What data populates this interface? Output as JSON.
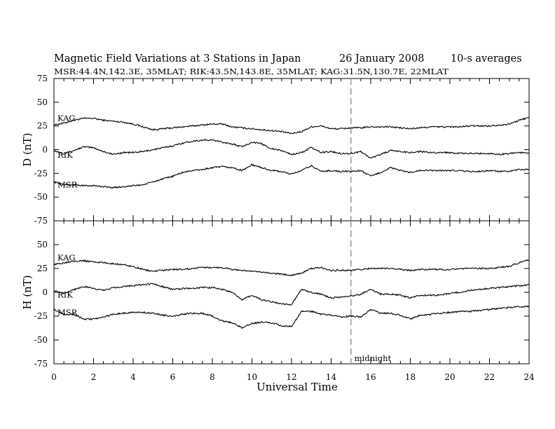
{
  "header": {
    "title": "Magnetic Field Variations at 3 Stations in Japan",
    "date": "26 January 2008",
    "cadence": "10-s averages",
    "subtitle": "MSR:44.4N,142.3E, 35MLAT;  RIK:43.5N,143.8E, 35MLAT;  KAG:31.5N,130.7E, 22MLAT"
  },
  "x_axis": {
    "label": "Universal Time",
    "range": [
      0,
      24
    ],
    "ticks": [
      "0",
      "2",
      "4",
      "6",
      "8",
      "10",
      "12",
      "14",
      "16",
      "18",
      "20",
      "22",
      "24"
    ]
  },
  "marker": {
    "label": "midnight",
    "x": 15,
    "color": "#999999"
  },
  "chart_data": [
    {
      "type": "line",
      "panel": "D",
      "ylabel": "D (nT)",
      "ylim": [
        -75,
        75
      ],
      "yticks": [
        "75",
        "50",
        "25",
        "0",
        "-25",
        "-50",
        "-75"
      ],
      "xlim": [
        0,
        24
      ],
      "grid": false,
      "series": [
        {
          "name": "KAG",
          "x": [
            0,
            0.5,
            1,
            1.5,
            2,
            2.5,
            3,
            3.5,
            4,
            4.5,
            5,
            5.5,
            6,
            6.5,
            7,
            7.5,
            8,
            8.5,
            9,
            9.5,
            10,
            10.5,
            11,
            11.5,
            12,
            12.5,
            13,
            13.5,
            14,
            14.5,
            15,
            15.5,
            16,
            16.5,
            17,
            17.5,
            18,
            18.5,
            19,
            19.5,
            20,
            20.5,
            21,
            21.5,
            22,
            22.5,
            23,
            23.5,
            24
          ],
          "y": [
            26,
            28,
            31,
            33,
            33,
            31,
            30,
            29,
            27,
            24,
            21,
            22,
            23,
            24,
            25,
            26,
            27,
            27,
            24,
            23,
            22,
            21,
            20,
            19,
            17,
            19,
            24,
            25,
            22,
            22,
            23,
            23,
            24,
            24,
            24,
            23,
            22,
            23,
            24,
            24,
            24,
            24,
            25,
            25,
            25,
            26,
            27,
            31,
            34
          ]
        },
        {
          "name": "RIK",
          "x": [
            0,
            0.5,
            1,
            1.5,
            2,
            2.5,
            3,
            3.5,
            4,
            4.5,
            5,
            5.5,
            6,
            6.5,
            7,
            7.5,
            8,
            8.5,
            9,
            9.5,
            10,
            10.5,
            11,
            11.5,
            12,
            12.5,
            13,
            13.5,
            14,
            14.5,
            15,
            15.5,
            16,
            16.5,
            17,
            17.5,
            18,
            18.5,
            19,
            19.5,
            20,
            20.5,
            21,
            21.5,
            22,
            22.5,
            23,
            23.5,
            24
          ],
          "y": [
            -1,
            -4,
            -1,
            3,
            2,
            -2,
            -5,
            -3,
            -3,
            -2,
            0,
            2,
            4,
            7,
            9,
            10,
            10,
            8,
            6,
            3,
            8,
            6,
            1,
            -1,
            -5,
            -3,
            2,
            -3,
            -2,
            -4,
            -4,
            -2,
            -9,
            -5,
            -1,
            -2,
            -3,
            -2,
            -3,
            -3,
            -3,
            -4,
            -4,
            -4,
            -4,
            -5,
            -4,
            -3,
            -3
          ]
        },
        {
          "name": "MSR",
          "x": [
            0,
            0.5,
            1,
            1.5,
            2,
            2.5,
            3,
            3.5,
            4,
            4.5,
            5,
            5.5,
            6,
            6.5,
            7,
            7.5,
            8,
            8.5,
            9,
            9.5,
            10,
            10.5,
            11,
            11.5,
            12,
            12.5,
            13,
            13.5,
            14,
            14.5,
            15,
            15.5,
            16,
            16.5,
            17,
            17.5,
            18,
            18.5,
            19,
            19.5,
            20,
            20.5,
            21,
            21.5,
            22,
            22.5,
            23,
            23.5,
            24
          ],
          "y": [
            -34,
            -37,
            -37,
            -38,
            -38,
            -39,
            -40,
            -39,
            -38,
            -37,
            -34,
            -31,
            -28,
            -24,
            -22,
            -21,
            -19,
            -18,
            -19,
            -22,
            -16,
            -19,
            -22,
            -23,
            -26,
            -22,
            -17,
            -23,
            -22,
            -23,
            -23,
            -22,
            -28,
            -24,
            -19,
            -22,
            -24,
            -22,
            -22,
            -22,
            -22,
            -22,
            -23,
            -23,
            -22,
            -23,
            -23,
            -21,
            -21
          ]
        }
      ]
    },
    {
      "type": "line",
      "panel": "H",
      "ylabel": "H (nT)",
      "ylim": [
        -75,
        75
      ],
      "yticks": [
        "75",
        "50",
        "25",
        "0",
        "-25",
        "-50",
        "-75"
      ],
      "xlim": [
        0,
        24
      ],
      "grid": false,
      "series": [
        {
          "name": "KAG",
          "x": [
            0,
            0.5,
            1,
            1.5,
            2,
            2.5,
            3,
            3.5,
            4,
            4.5,
            5,
            5.5,
            6,
            6.5,
            7,
            7.5,
            8,
            8.5,
            9,
            9.5,
            10,
            10.5,
            11,
            11.5,
            12,
            12.5,
            13,
            13.5,
            14,
            14.5,
            15,
            15.5,
            16,
            16.5,
            17,
            17.5,
            18,
            18.5,
            19,
            19.5,
            20,
            20.5,
            21,
            21.5,
            22,
            22.5,
            23,
            23.5,
            24
          ],
          "y": [
            29,
            31,
            33,
            33,
            32,
            31,
            30,
            29,
            27,
            24,
            22,
            23,
            24,
            24,
            25,
            26,
            26,
            26,
            24,
            23,
            22,
            21,
            20,
            19,
            18,
            20,
            25,
            26,
            23,
            23,
            23,
            24,
            25,
            25,
            25,
            24,
            23,
            24,
            24,
            24,
            24,
            25,
            25,
            25,
            25,
            26,
            27,
            31,
            34
          ]
        },
        {
          "name": "RIK",
          "x": [
            0,
            0.5,
            1,
            1.5,
            2,
            2.5,
            3,
            3.5,
            4,
            4.5,
            5,
            5.5,
            6,
            6.5,
            7,
            7.5,
            8,
            8.5,
            9,
            9.5,
            10,
            10.5,
            11,
            11.5,
            12,
            12.5,
            13,
            13.5,
            14,
            14.5,
            15,
            15.5,
            16,
            16.5,
            17,
            17.5,
            18,
            18.5,
            19,
            19.5,
            20,
            20.5,
            21,
            21.5,
            22,
            22.5,
            23,
            23.5,
            24
          ],
          "y": [
            2,
            -1,
            3,
            6,
            4,
            2,
            5,
            6,
            7,
            8,
            9,
            6,
            3,
            4,
            4,
            5,
            5,
            3,
            0,
            -8,
            -3,
            -8,
            -10,
            -12,
            -13,
            3,
            0,
            -2,
            -6,
            -5,
            -4,
            -2,
            3,
            -2,
            -2,
            -3,
            -6,
            -3,
            -3,
            -3,
            -1,
            0,
            2,
            3,
            4,
            5,
            6,
            7,
            8
          ]
        },
        {
          "name": "MSR",
          "x": [
            0,
            0.5,
            1,
            1.5,
            2,
            2.5,
            3,
            3.5,
            4,
            4.5,
            5,
            5.5,
            6,
            6.5,
            7,
            7.5,
            8,
            8.5,
            9,
            9.5,
            10,
            10.5,
            11,
            11.5,
            12,
            12.5,
            13,
            13.5,
            14,
            14.5,
            15,
            15.5,
            16,
            16.5,
            17,
            17.5,
            18,
            18.5,
            19,
            19.5,
            20,
            20.5,
            21,
            21.5,
            22,
            22.5,
            23,
            23.5,
            24
          ],
          "y": [
            -18,
            -23,
            -23,
            -28,
            -28,
            -26,
            -23,
            -22,
            -21,
            -21,
            -22,
            -24,
            -25,
            -23,
            -22,
            -22,
            -25,
            -30,
            -32,
            -37,
            -33,
            -31,
            -32,
            -35,
            -36,
            -20,
            -20,
            -23,
            -24,
            -26,
            -25,
            -26,
            -18,
            -22,
            -22,
            -24,
            -28,
            -24,
            -23,
            -22,
            -21,
            -20,
            -20,
            -19,
            -18,
            -17,
            -16,
            -15,
            -15
          ]
        }
      ]
    }
  ]
}
